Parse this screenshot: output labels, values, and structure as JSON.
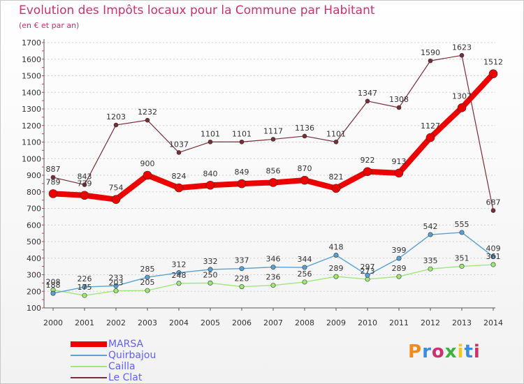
{
  "colors": {
    "title": "#c8326e",
    "legend_text": "#6060ff"
  },
  "logo": {
    "text": "Proxiti",
    "colors": [
      "#f08c1e",
      "#3c8cdc",
      "#c8326e",
      "#3cb43c",
      "#f0c81e",
      "#3c8cdc",
      "#c8326e"
    ]
  },
  "chart_data": {
    "type": "line",
    "title": "Evolution des Impôts locaux pour la Commune par Habitant",
    "subtitle": "(en € et par an)",
    "xlabel": "",
    "ylabel": "",
    "ylim": [
      100,
      1700
    ],
    "yticks": [
      100,
      200,
      300,
      400,
      500,
      600,
      700,
      800,
      900,
      1000,
      1100,
      1200,
      1300,
      1400,
      1500,
      1600,
      1700
    ],
    "grid": true,
    "categories": [
      "2000",
      "2001",
      "2002",
      "2003",
      "2004",
      "2005",
      "2006",
      "2007",
      "2008",
      "2009",
      "2010",
      "2011",
      "2012",
      "2013",
      "2014"
    ],
    "series": [
      {
        "name": "Le Clat",
        "color": "#7a2d36",
        "width": 1.2,
        "marker": 3,
        "values": [
          887,
          843,
          1203,
          1232,
          1037,
          1101,
          1101,
          1117,
          1136,
          1101,
          1347,
          1308,
          1590,
          1623,
          687
        ]
      },
      {
        "name": "Cailla",
        "color": "#9ee87a",
        "width": 1.4,
        "marker": 3.2,
        "values": [
          208,
          175,
          203,
          205,
          248,
          250,
          228,
          236,
          256,
          289,
          273,
          289,
          335,
          351,
          361
        ]
      },
      {
        "name": "Quirbajou",
        "color": "#5aa0d2",
        "width": 1.4,
        "marker": 3.2,
        "values": [
          188,
          226,
          233,
          285,
          312,
          332,
          337,
          346,
          344,
          418,
          297,
          399,
          542,
          555,
          409
        ]
      },
      {
        "name": "MARSA",
        "color": "#ee0000",
        "width": 8,
        "marker": 6,
        "values": [
          789,
          779,
          754,
          900,
          824,
          840,
          849,
          856,
          870,
          821,
          922,
          913,
          1127,
          1307,
          1512
        ]
      }
    ],
    "legend_order": [
      "MARSA",
      "Quirbajou",
      "Cailla",
      "Le Clat"
    ],
    "legend_position": "bottom-left"
  }
}
